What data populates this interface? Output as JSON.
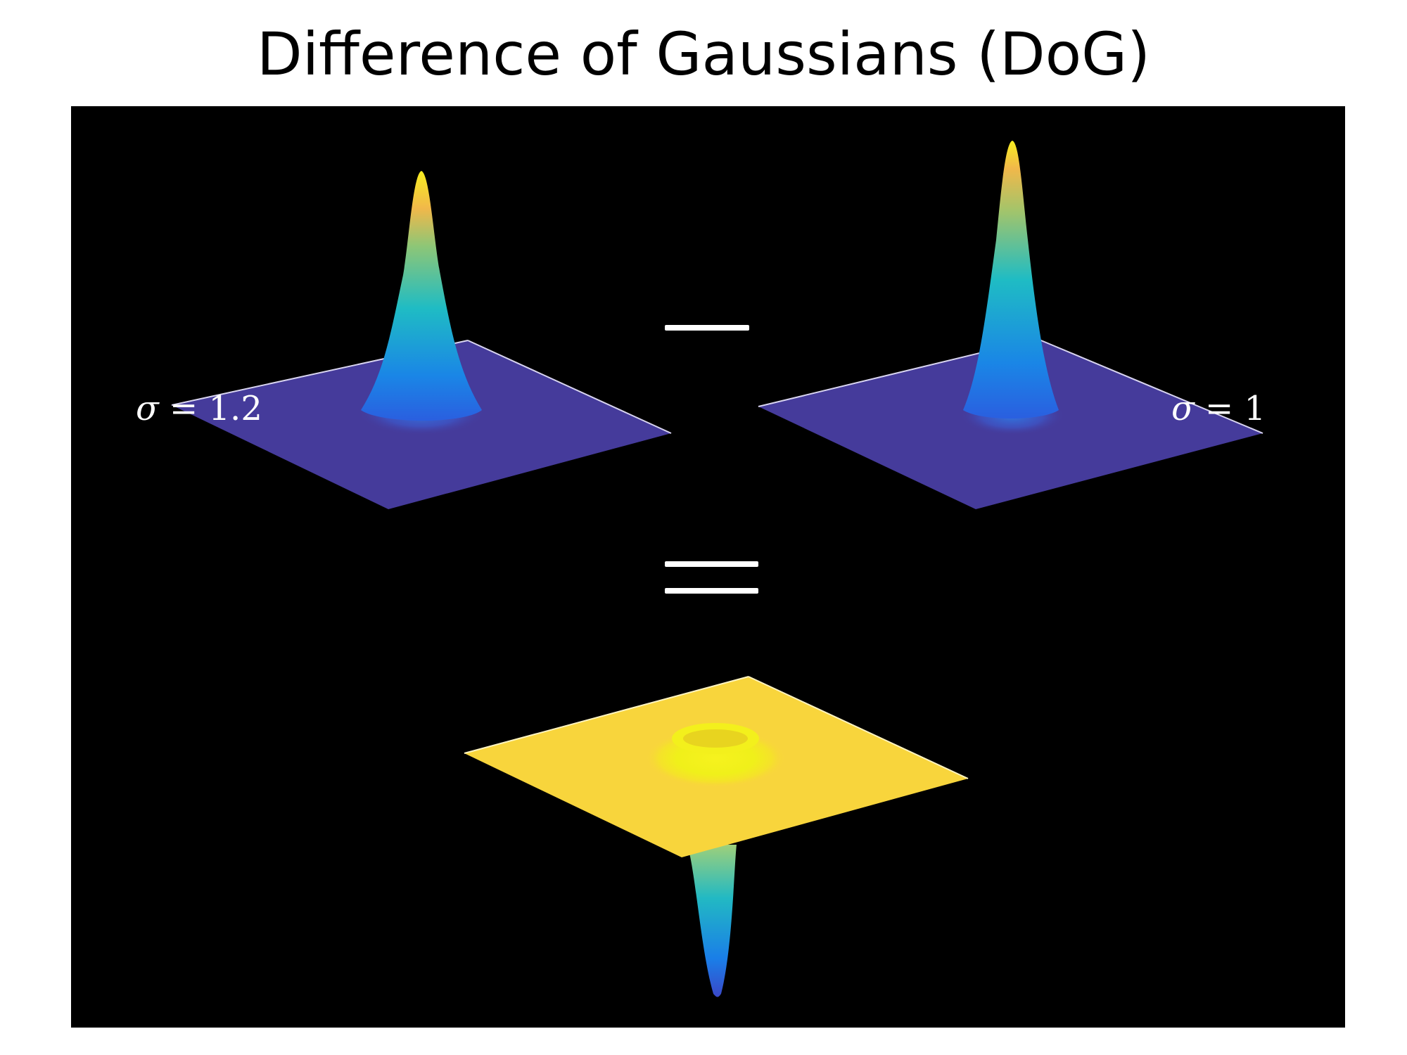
{
  "title": "Difference of Gaussians (DoG)",
  "labels": {
    "left": {
      "symbol": "σ",
      "equals": "=",
      "value": "1.2"
    },
    "right": {
      "symbol": "σ",
      "equals": "=",
      "value": "1"
    }
  },
  "operators": {
    "minus": "−",
    "equals": "="
  },
  "colors": {
    "background": "#000000",
    "plane_purple": "#453b9b",
    "plane_yellow": "#f8d53c",
    "peak_yellow": "#f9f71d",
    "peak_orange": "#f4b844",
    "peak_teal": "#21b8c6",
    "peak_blue": "#1973e6"
  }
}
